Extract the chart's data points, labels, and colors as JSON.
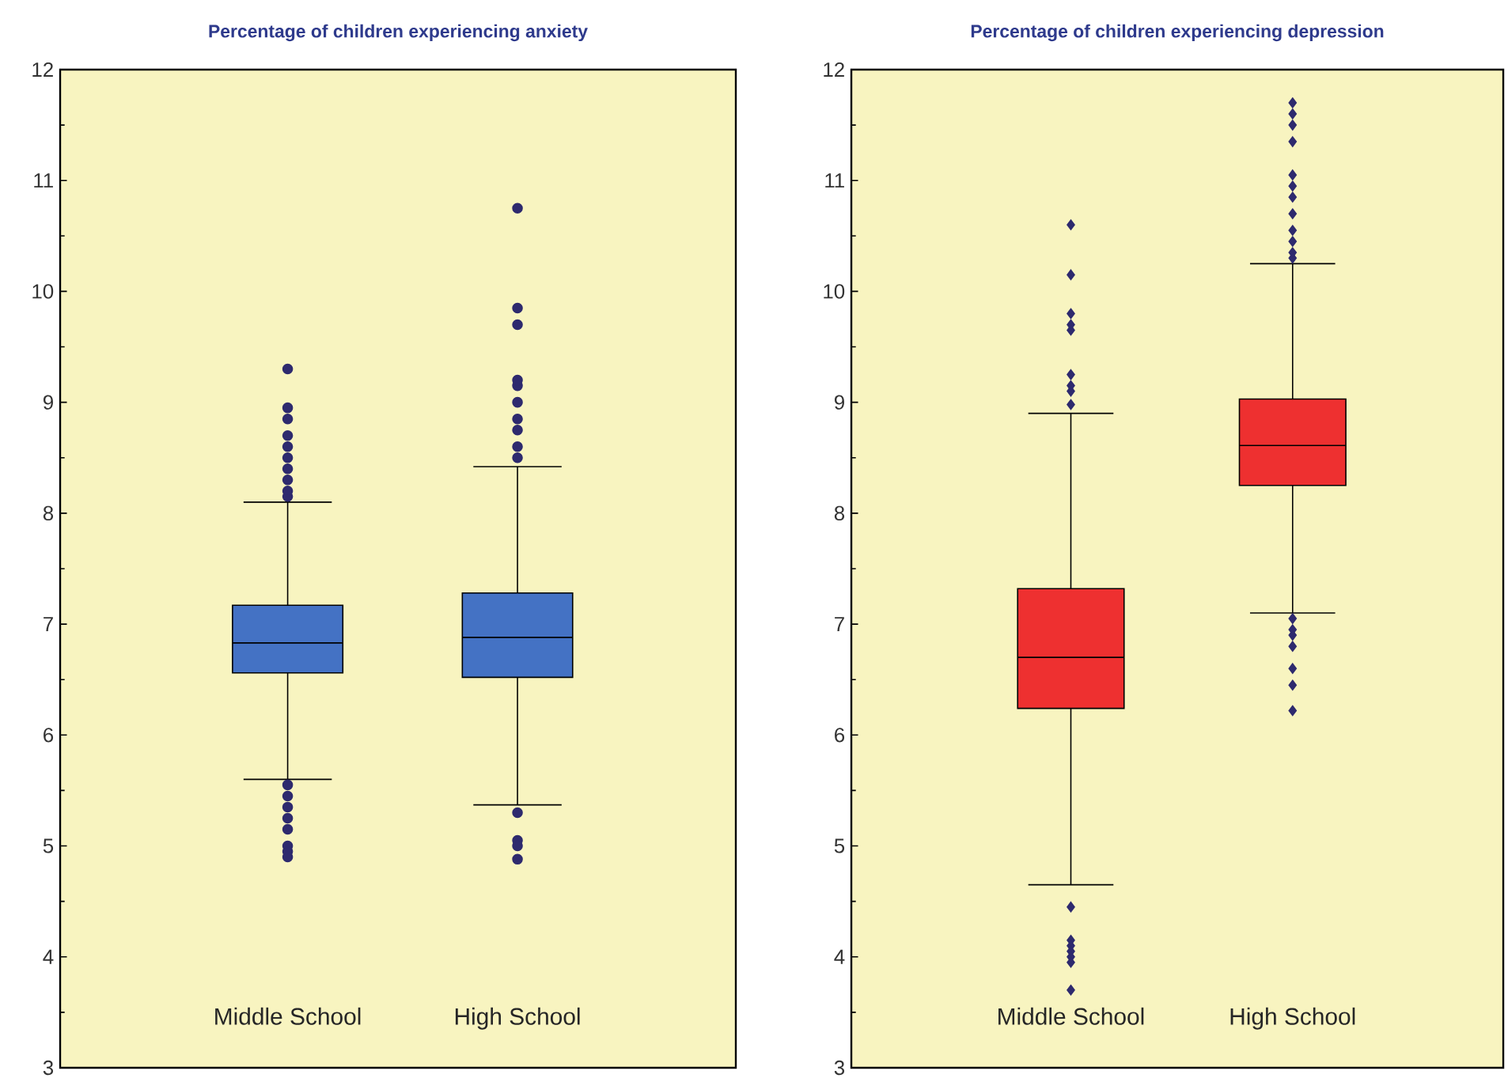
{
  "chart_data": [
    {
      "type": "box",
      "title": "Percentage of children experiencing anxiety",
      "categories": [
        "Middle School",
        "High School"
      ],
      "marker": "circle",
      "ylim": [
        3,
        12
      ],
      "yticks": [
        3,
        4,
        5,
        6,
        7,
        8,
        9,
        10,
        11,
        12
      ],
      "series": [
        {
          "color": "#4472c4",
          "boxes": [
            {
              "low": 5.6,
              "q1": 6.56,
              "median": 6.83,
              "q3": 7.17,
              "high": 8.1,
              "outliers": [
                8.15,
                8.2,
                8.3,
                8.4,
                8.5,
                8.6,
                8.7,
                8.85,
                8.95,
                9.3,
                5.55,
                5.45,
                5.35,
                5.25,
                5.15,
                5.0,
                4.95,
                4.9
              ]
            },
            {
              "low": 5.37,
              "q1": 6.52,
              "median": 6.88,
              "q3": 7.28,
              "high": 8.42,
              "outliers": [
                8.5,
                8.6,
                8.75,
                8.85,
                9.0,
                9.15,
                9.2,
                9.7,
                9.85,
                10.75,
                5.3,
                5.05,
                5.0,
                4.88
              ]
            }
          ]
        }
      ]
    },
    {
      "type": "box",
      "title": "Percentage of children experiencing depression",
      "categories": [
        "Middle School",
        "High School"
      ],
      "marker": "diamond",
      "ylim": [
        3,
        12
      ],
      "yticks": [
        3,
        4,
        5,
        6,
        7,
        8,
        9,
        10,
        11,
        12
      ],
      "series": [
        {
          "color": "#ee3030",
          "boxes": [
            {
              "low": 4.65,
              "q1": 6.24,
              "median": 6.7,
              "q3": 7.32,
              "high": 8.9,
              "outliers": [
                8.98,
                9.1,
                9.15,
                9.25,
                9.65,
                9.7,
                9.8,
                10.15,
                10.6,
                4.45,
                4.15,
                4.1,
                4.05,
                4.0,
                3.95,
                3.7
              ]
            },
            {
              "low": 7.1,
              "q1": 8.25,
              "median": 8.61,
              "q3": 9.03,
              "high": 10.25,
              "outliers": [
                10.3,
                10.35,
                10.45,
                10.55,
                10.7,
                10.85,
                10.95,
                11.05,
                11.35,
                11.5,
                11.6,
                11.7,
                7.05,
                6.95,
                6.9,
                6.8,
                6.6,
                6.45,
                6.22
              ]
            }
          ]
        }
      ]
    }
  ]
}
